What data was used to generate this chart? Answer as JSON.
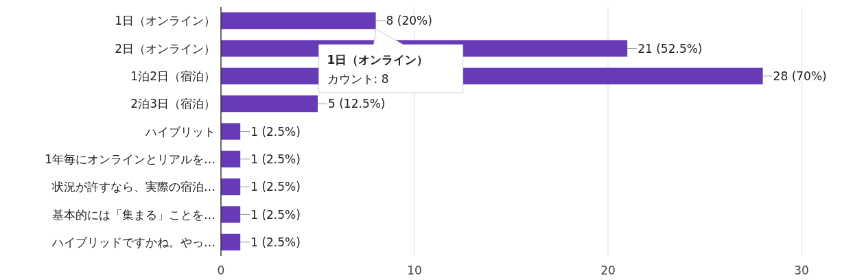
{
  "chart_data": {
    "type": "bar",
    "orientation": "horizontal",
    "categories": [
      "1日（オンライン）",
      "2日（オンライン）",
      "1泊2日（宿泊）",
      "2泊3日（宿泊）",
      "ハイブリット",
      "1年毎にオンラインとリアルを…",
      "状況が許すなら、実際の宿泊…",
      "基本的には「集まる」ことを…",
      "ハイブリッドですかね。やっ…"
    ],
    "values": [
      8,
      21,
      28,
      5,
      1,
      1,
      1,
      1,
      1
    ],
    "value_labels": [
      "8 (20%)",
      "21 (52.5%)",
      "28 (70%)",
      "5 (12.5%)",
      "1 (2.5%)",
      "1 (2.5%)",
      "1 (2.5%)",
      "1 (2.5%)",
      "1 (2.5%)"
    ],
    "color": "#673ab7",
    "xlim": [
      0,
      30
    ],
    "xticks": [
      0,
      10,
      20,
      30
    ],
    "grid": "x",
    "annotations": [
      {
        "text": "1日（オンライン）",
        "x": 8,
        "y": "1日（オンライン）"
      },
      "カウント: 8"
    ]
  }
}
